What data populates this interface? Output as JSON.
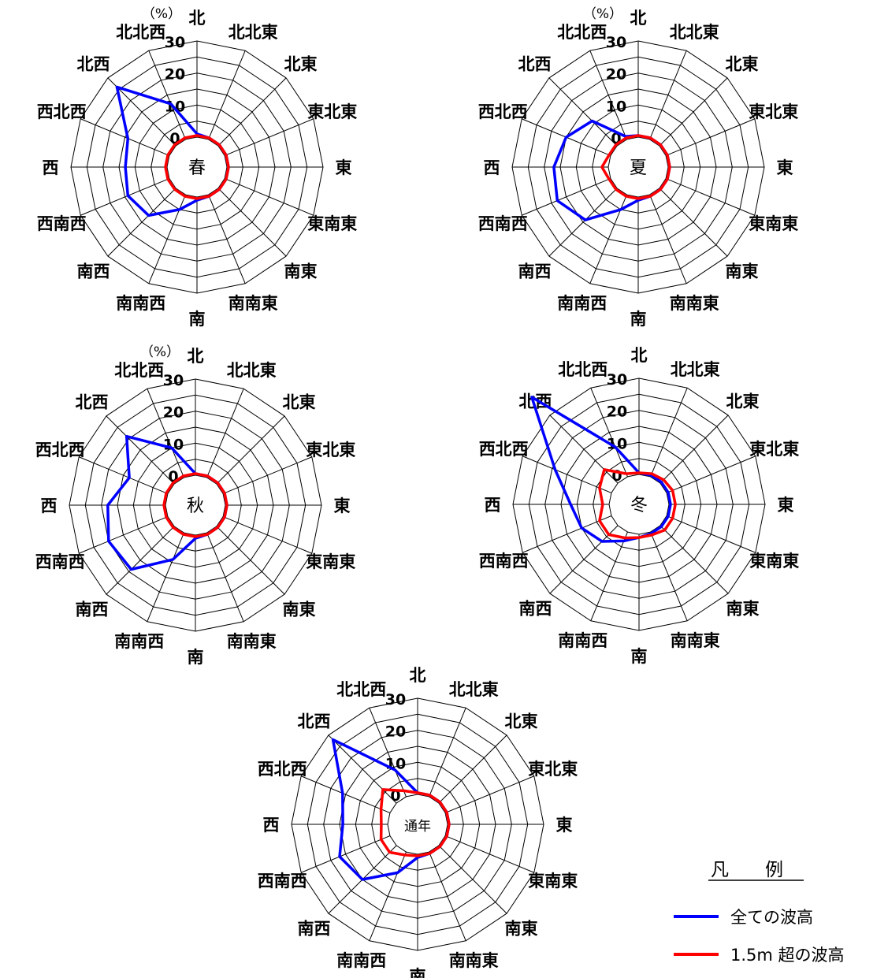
{
  "chart_data": [
    {
      "type": "radar",
      "center_label": "春",
      "unit": "（%）",
      "directions": [
        "北",
        "北北東",
        "北東",
        "東北東",
        "東",
        "東南東",
        "南東",
        "南南東",
        "南",
        "南南西",
        "南西",
        "西南西",
        "西",
        "西北西",
        "北西",
        "北北西"
      ],
      "r_ticks": [
        0,
        10,
        20,
        30
      ],
      "rlim": [
        0,
        30
      ],
      "series": [
        {
          "name": "全ての波高",
          "values": [
            1,
            0.5,
            0.5,
            0.5,
            0.5,
            0.5,
            0.5,
            0.5,
            1,
            5,
            12,
            14,
            13,
            14,
            26,
            12
          ]
        },
        {
          "name": "1.5m 超の波高",
          "values": [
            0.5,
            0.5,
            0.5,
            0.5,
            0.5,
            0.5,
            0.5,
            0.5,
            0.5,
            0.5,
            0.5,
            0.5,
            0.5,
            0.5,
            0.5,
            0.5
          ]
        }
      ]
    },
    {
      "type": "radar",
      "center_label": "夏",
      "unit": "（%）",
      "directions": [
        "北",
        "北北東",
        "北東",
        "東北東",
        "東",
        "東南東",
        "南東",
        "南南東",
        "南",
        "南南西",
        "南西",
        "西南西",
        "西",
        "西北西",
        "北西",
        "北北西"
      ],
      "r_ticks": [
        0,
        10,
        20,
        30
      ],
      "rlim": [
        0,
        30
      ],
      "series": [
        {
          "name": "全ての波高",
          "values": [
            0.5,
            0.5,
            0.5,
            0.5,
            0.5,
            0.5,
            0.5,
            0.5,
            1,
            5,
            14,
            18,
            17,
            15,
            11,
            1
          ]
        },
        {
          "name": "1.5m 超の波高",
          "values": [
            0.5,
            0.5,
            0.5,
            0.5,
            0.5,
            0.5,
            0.5,
            0.5,
            0.5,
            0.5,
            0.5,
            0.5,
            2,
            0.5,
            0.5,
            0.5
          ]
        }
      ]
    },
    {
      "type": "radar",
      "center_label": "秋",
      "unit": "（%）",
      "directions": [
        "北",
        "北北東",
        "北東",
        "東北東",
        "東",
        "東南東",
        "南東",
        "南南東",
        "南",
        "南南西",
        "南西",
        "西南西",
        "西",
        "西北西",
        "北西",
        "北北西"
      ],
      "r_ticks": [
        0,
        10,
        20,
        30
      ],
      "rlim": [
        0,
        30
      ],
      "series": [
        {
          "name": "全ての波高",
          "values": [
            0.5,
            0.5,
            0.5,
            0.5,
            0.5,
            0.5,
            0.5,
            0.5,
            1,
            9,
            19,
            20,
            18,
            13,
            21,
            10
          ]
        },
        {
          "name": "1.5m 超の波高",
          "values": [
            0.5,
            0.5,
            0.5,
            0.5,
            0.5,
            0.5,
            0.5,
            0.5,
            0.5,
            0.5,
            0.5,
            0.5,
            0.5,
            0.5,
            0.5,
            0.5
          ]
        }
      ]
    },
    {
      "type": "radar",
      "center_label": "冬",
      "unit": "",
      "directions": [
        "北",
        "北北東",
        "北東",
        "東北東",
        "東",
        "東南東",
        "南東",
        "南南東",
        "南",
        "南南西",
        "南西",
        "西南西",
        "西",
        "西北西",
        "北西",
        "北北西"
      ],
      "r_ticks": [
        0,
        10,
        20,
        30
      ],
      "rlim": [
        0,
        30
      ],
      "series": [
        {
          "name": "全ての波高",
          "values": [
            0.5,
            0.5,
            0.5,
            0.5,
            0.5,
            0.5,
            0.5,
            0.5,
            1,
            3,
            7,
            10,
            12,
            19,
            38,
            10
          ]
        },
        {
          "name": "1.5m 超の波高",
          "values": [
            0.5,
            1,
            1.5,
            2,
            2,
            2,
            2,
            1,
            1,
            2,
            4,
            4,
            2,
            4,
            6,
            1
          ]
        }
      ]
    },
    {
      "type": "radar",
      "center_label": "通年",
      "unit": "",
      "directions": [
        "北",
        "北北東",
        "北東",
        "東北東",
        "東",
        "東南東",
        "南東",
        "南南東",
        "南",
        "南南西",
        "南西",
        "西南西",
        "西",
        "西北西",
        "北西",
        "北北西"
      ],
      "r_ticks": [
        0,
        10,
        20,
        30
      ],
      "rlim": [
        0,
        30
      ],
      "series": [
        {
          "name": "全ての波高",
          "values": [
            0.5,
            0.5,
            0.5,
            0.5,
            0.5,
            0.5,
            0.5,
            0.5,
            1,
            7,
            15,
            17,
            14,
            16,
            28,
            9
          ]
        },
        {
          "name": "1.5m 超の波高",
          "values": [
            0.5,
            0.5,
            0.5,
            0.5,
            0.5,
            0.5,
            0.5,
            0.5,
            0.5,
            1,
            3,
            3,
            2,
            3,
            6,
            2
          ]
        }
      ]
    }
  ],
  "legend": {
    "title": "凡　　例",
    "items": [
      {
        "label": "全ての波高",
        "color": "#0000ff"
      },
      {
        "label": "1.5m 超の波高",
        "color": "#ff0000"
      }
    ]
  },
  "colors": {
    "all_waves": "#0000ff",
    "over_1_5m": "#ff0000",
    "grid": "#000000"
  }
}
